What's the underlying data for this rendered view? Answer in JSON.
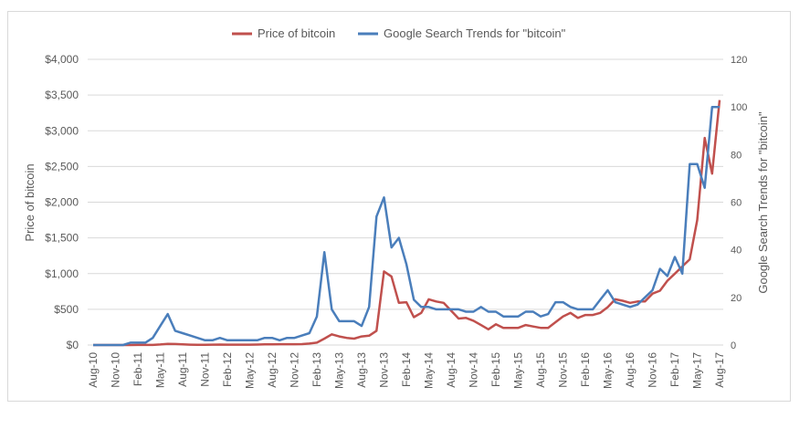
{
  "chart_data": {
    "type": "line",
    "title": "",
    "xlabel": "",
    "ylabel": "Price of bitcoin",
    "y2label": "Google Search Trends for \"bitcoin\"",
    "ylim": [
      0,
      4000
    ],
    "y2lim": [
      0,
      120
    ],
    "yticks": [
      "$0",
      "$500",
      "$1,000",
      "$1,500",
      "$2,000",
      "$2,500",
      "$3,000",
      "$3,500",
      "$4,000"
    ],
    "y2ticks": [
      "0",
      "20",
      "40",
      "60",
      "80",
      "100",
      "120"
    ],
    "grid": true,
    "legend_position": "top-center",
    "colors": {
      "price": "#c0504d",
      "trends": "#4a7ebb"
    },
    "x_tick_labels": [
      "Aug-10",
      "Nov-10",
      "Feb-11",
      "May-11",
      "Aug-11",
      "Nov-11",
      "Feb-12",
      "May-12",
      "Aug-12",
      "Nov-12",
      "Feb-13",
      "May-13",
      "Aug-13",
      "Nov-13",
      "Feb-14",
      "May-14",
      "Aug-14",
      "Nov-14",
      "Feb-15",
      "May-15",
      "Aug-15",
      "Nov-15",
      "Feb-16",
      "May-16",
      "Aug-16",
      "Nov-16",
      "Feb-17",
      "May-17",
      "Aug-17"
    ],
    "series": [
      {
        "name": "Price of bitcoin",
        "axis": "left",
        "values": [
          0,
          0,
          0,
          0,
          0,
          0,
          1,
          1,
          1,
          8,
          17,
          14,
          9,
          5,
          3,
          3,
          5,
          6,
          5,
          5,
          5,
          5,
          7,
          9,
          10,
          12,
          11,
          12,
          13,
          20,
          33,
          90,
          150,
          120,
          100,
          90,
          120,
          130,
          200,
          1030,
          960,
          590,
          600,
          390,
          450,
          640,
          610,
          590,
          480,
          370,
          380,
          340,
          280,
          220,
          290,
          240,
          240,
          240,
          280,
          260,
          240,
          240,
          320,
          400,
          450,
          380,
          420,
          420,
          450,
          530,
          640,
          620,
          590,
          610,
          610,
          720,
          760,
          900,
          1000,
          1100,
          1200,
          1750,
          2900,
          2400,
          3430
        ]
      },
      {
        "name": "Google Search Trends for \"bitcoin\"",
        "axis": "right",
        "values": [
          0,
          0,
          0,
          0,
          0,
          1,
          1,
          1,
          3,
          8,
          13,
          6,
          5,
          4,
          3,
          2,
          2,
          3,
          2,
          2,
          2,
          2,
          2,
          3,
          3,
          2,
          3,
          3,
          4,
          5,
          12,
          39,
          15,
          10,
          10,
          10,
          8,
          16,
          54,
          62,
          41,
          45,
          34,
          19,
          16,
          16,
          15,
          15,
          15,
          15,
          14,
          14,
          16,
          14,
          14,
          12,
          12,
          12,
          14,
          14,
          12,
          13,
          18,
          18,
          16,
          15,
          15,
          15,
          19,
          23,
          18,
          17,
          16,
          17,
          20,
          23,
          32,
          29,
          37,
          30,
          76,
          76,
          66,
          100,
          100
        ]
      }
    ]
  }
}
